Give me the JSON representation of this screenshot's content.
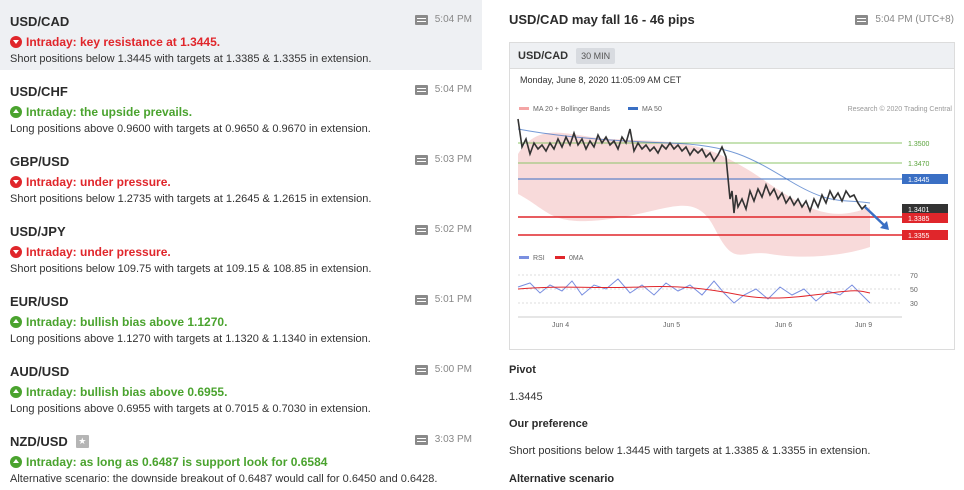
{
  "list": [
    {
      "pair": "USD/CAD",
      "time": "5:04 PM",
      "direction": "down",
      "headline": "Intraday: key resistance at 1.3445.",
      "summary": "Short positions below 1.3445 with targets at 1.3385 & 1.3355 in extension.",
      "active": true
    },
    {
      "pair": "USD/CHF",
      "time": "5:04 PM",
      "direction": "up",
      "headline": "Intraday: the upside prevails.",
      "summary": "Long positions above 0.9600 with targets at 0.9650 & 0.9670 in extension."
    },
    {
      "pair": "GBP/USD",
      "time": "5:03 PM",
      "direction": "down",
      "headline": "Intraday: under pressure.",
      "summary": "Short positions below 1.2735 with targets at 1.2645 & 1.2615 in extension."
    },
    {
      "pair": "USD/JPY",
      "time": "5:02 PM",
      "direction": "down",
      "headline": "Intraday: under pressure.",
      "summary": "Short positions below 109.75 with targets at 109.15 & 108.85 in extension."
    },
    {
      "pair": "EUR/USD",
      "time": "5:01 PM",
      "direction": "up",
      "headline": "Intraday: bullish bias above 1.1270.",
      "summary": "Long positions above 1.1270 with targets at 1.1320 & 1.1340 in extension."
    },
    {
      "pair": "AUD/USD",
      "time": "5:00 PM",
      "direction": "up",
      "headline": "Intraday: bullish bias above 0.6955.",
      "summary": "Long positions above 0.6955 with targets at 0.7015 & 0.7030 in extension."
    },
    {
      "pair": "NZD/USD",
      "time": "3:03 PM",
      "direction": "up",
      "headline": "Intraday: as long as 0.6487 is support look for 0.6584",
      "summary": "Alternative scenario: the downside breakout of 0.6487 would call for 0.6450 and 0.6428.",
      "starred": true
    }
  ],
  "detail": {
    "title": "USD/CAD may fall 16 - 46 pips",
    "time": "5:04 PM (UTC+8)",
    "chart": {
      "symbol": "USD/CAD",
      "timeframe": "30 MIN",
      "date": "Monday, June 8, 2020 11:05:09 AM CET",
      "legend_ma": "MA 20 + Bollinger Bands",
      "legend_ma50": "MA 50",
      "copyright": "Research © 2020 Trading Central",
      "legend_rsi": "RSI",
      "legend_0ma": "0MA",
      "price_levels": [
        "1.3500",
        "1.3470",
        "1.3445",
        "1.3401",
        "1.3385",
        "1.3355"
      ],
      "rsi_levels": [
        "70",
        "50",
        "30"
      ],
      "x_labels": [
        "Jun 4",
        "Jun 5",
        "Jun 6",
        "Jun 9"
      ],
      "colors": {
        "ma20": "#f4a5a5",
        "ma50": "#3a6fc4",
        "resistance": "#3a6fc4",
        "support": "#e0262b",
        "target_green": "#8cc46a",
        "current": "#333333"
      }
    },
    "pivot_label": "Pivot",
    "pivot_value": "1.3445",
    "preference_label": "Our preference",
    "preference_text": "Short positions below 1.3445 with targets at 1.3385 & 1.3355 in extension.",
    "alternative_label": "Alternative scenario"
  }
}
